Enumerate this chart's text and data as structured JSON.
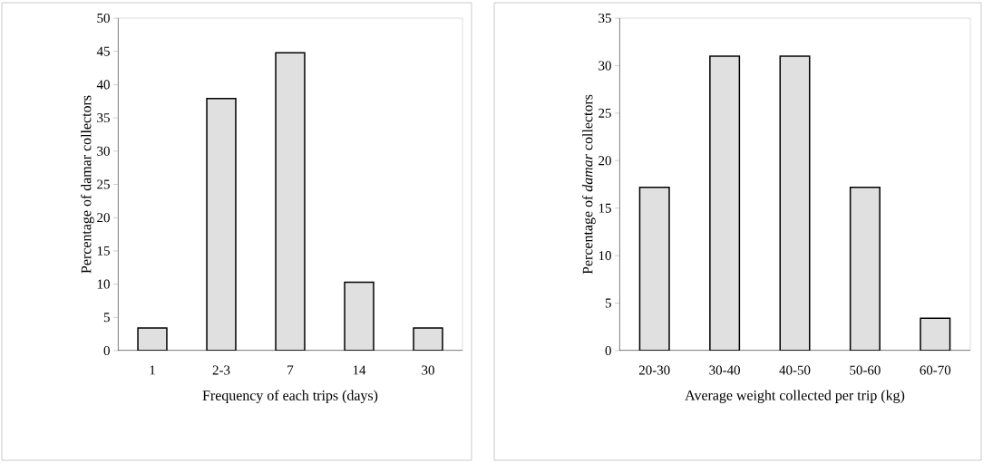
{
  "chart_data": [
    {
      "type": "bar",
      "xlabel": "Frequency of each trips (days)",
      "ylabel": "Percentage of damar collectors",
      "categories": [
        "1",
        "2-3",
        "7",
        "14",
        "30"
      ],
      "values": [
        3.4,
        37.9,
        44.8,
        10.3,
        3.4
      ],
      "color": "#e0e0e0",
      "ylim": [
        0,
        50
      ],
      "yticks": [
        0,
        5,
        10,
        15,
        20,
        25,
        30,
        35,
        40,
        45,
        50
      ],
      "grid": false
    },
    {
      "type": "bar",
      "xlabel": "Average weight collected per trip (kg)",
      "ylabel": "Percentage of *damar* collectors",
      "categories": [
        "20-30",
        "30-40",
        "40-50",
        "50-60",
        "60-70"
      ],
      "values": [
        17.2,
        31.0,
        31.0,
        17.2,
        3.4
      ],
      "color": "#e0e0e0",
      "ylim": [
        0,
        35
      ],
      "yticks": [
        0,
        5,
        10,
        15,
        20,
        25,
        30,
        35
      ],
      "grid": false
    }
  ]
}
